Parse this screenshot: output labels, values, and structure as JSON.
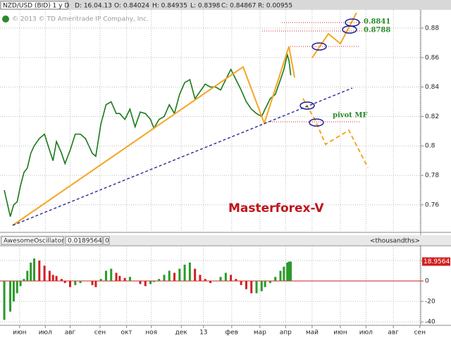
{
  "header": {
    "symbol": "NZD/USD (BID) 1 y D",
    "date": "D: 16.04.13",
    "open": "O: 0.84024",
    "high": "H: 0.84935",
    "low": "L: 0.8398",
    "close": "C: 0.84867",
    "range": "R: 0.00955",
    "watermark": "© 2013 © TD Ameritrade IP Company, Inc."
  },
  "annotations": {
    "brand": "Masterforex-V",
    "level1": "0.8841",
    "level2": "0.8788",
    "pivot": "pivot MF"
  },
  "chart_data": [
    {
      "type": "line",
      "name": "NZD/USD",
      "color": "#1a7a1a",
      "x": [
        5,
        12,
        16,
        20,
        24,
        28,
        32,
        36,
        40,
        46,
        52,
        58,
        62,
        66,
        72,
        76,
        82,
        88,
        94,
        100,
        108,
        112,
        118,
        124,
        130,
        136,
        140,
        146,
        152,
        158,
        164,
        170,
        176,
        180,
        186,
        192,
        198,
        204,
        210,
        216,
        222,
        228,
        234,
        240,
        246,
        252,
        258,
        264,
        270,
        276,
        282,
        288,
        294,
        300,
        306,
        310,
        316,
        322,
        328,
        332,
        336,
        338,
        340
      ],
      "values": [
        0.77,
        0.752,
        0.76,
        0.762,
        0.773,
        0.782,
        0.785,
        0.795,
        0.8,
        0.805,
        0.808,
        0.797,
        0.79,
        0.803,
        0.795,
        0.788,
        0.797,
        0.808,
        0.808,
        0.805,
        0.795,
        0.793,
        0.815,
        0.828,
        0.83,
        0.822,
        0.822,
        0.818,
        0.825,
        0.813,
        0.823,
        0.822,
        0.818,
        0.812,
        0.818,
        0.82,
        0.828,
        0.822,
        0.835,
        0.843,
        0.845,
        0.832,
        0.837,
        0.842,
        0.84,
        0.84,
        0.838,
        0.845,
        0.852,
        0.845,
        0.838,
        0.83,
        0.825,
        0.822,
        0.82,
        0.825,
        0.832,
        0.835,
        0.845,
        0.852,
        0.862,
        0.858,
        0.848
      ],
      "xlim": [
        0,
        492
      ],
      "ylim": [
        0.7413,
        0.8924
      ],
      "yticks": [
        0.88,
        0.86,
        0.84,
        0.82,
        0.8,
        0.78,
        0.76
      ],
      "grid": true
    },
    {
      "type": "bar",
      "name": "AwesomeOscillator",
      "title": "AwesomeOscillator",
      "value_text": "0.0189564",
      "param": "0",
      "units": "<thousandths>",
      "last_label": "18.9564",
      "up_color": "#2a9a2a",
      "down_color": "#d02020",
      "x": [
        5,
        12,
        16,
        20,
        24,
        28,
        32,
        36,
        40,
        46,
        52,
        58,
        62,
        66,
        72,
        76,
        82,
        88,
        94,
        100,
        108,
        112,
        118,
        124,
        130,
        136,
        140,
        146,
        152,
        158,
        164,
        170,
        176,
        180,
        186,
        192,
        198,
        204,
        210,
        216,
        222,
        228,
        234,
        240,
        246,
        252,
        258,
        264,
        270,
        276,
        282,
        288,
        294,
        300,
        306,
        310,
        316,
        322,
        328,
        332,
        336,
        338,
        340
      ],
      "values": [
        -38,
        -30,
        -20,
        -12,
        -5,
        2,
        10,
        18,
        22,
        20,
        15,
        10,
        6,
        5,
        2,
        -2,
        -6,
        -4,
        -2,
        0,
        -4,
        -6,
        2,
        10,
        12,
        8,
        5,
        3,
        4,
        0,
        -3,
        -5,
        -3,
        -1,
        2,
        6,
        10,
        8,
        12,
        16,
        18,
        12,
        6,
        2,
        -2,
        0,
        4,
        8,
        6,
        2,
        -4,
        -8,
        -12,
        -12,
        -10,
        -6,
        -2,
        4,
        10,
        14,
        18,
        19,
        19
      ],
      "xlim": [
        0,
        492
      ],
      "ylim": [
        -43.4,
        33.8
      ],
      "yticks": [
        20,
        0,
        -20,
        -40
      ],
      "grid": true,
      "xticks": [
        {
          "value": 23,
          "label": "июн"
        },
        {
          "value": 53,
          "label": "июл"
        },
        {
          "value": 82,
          "label": "авг"
        },
        {
          "value": 117,
          "label": "сен"
        },
        {
          "value": 148,
          "label": "окт"
        },
        {
          "value": 177,
          "label": "ноя"
        },
        {
          "value": 212,
          "label": "дек"
        },
        {
          "value": 238,
          "label": "13"
        },
        {
          "value": 271,
          "label": "фев"
        },
        {
          "value": 304,
          "label": "мар"
        },
        {
          "value": 334,
          "label": "апр"
        },
        {
          "value": 365,
          "label": "май"
        },
        {
          "value": 398,
          "label": "июн"
        },
        {
          "value": 428,
          "label": "июл"
        },
        {
          "value": 460,
          "label": "авг"
        },
        {
          "value": 491,
          "label": "сен"
        }
      ]
    }
  ]
}
